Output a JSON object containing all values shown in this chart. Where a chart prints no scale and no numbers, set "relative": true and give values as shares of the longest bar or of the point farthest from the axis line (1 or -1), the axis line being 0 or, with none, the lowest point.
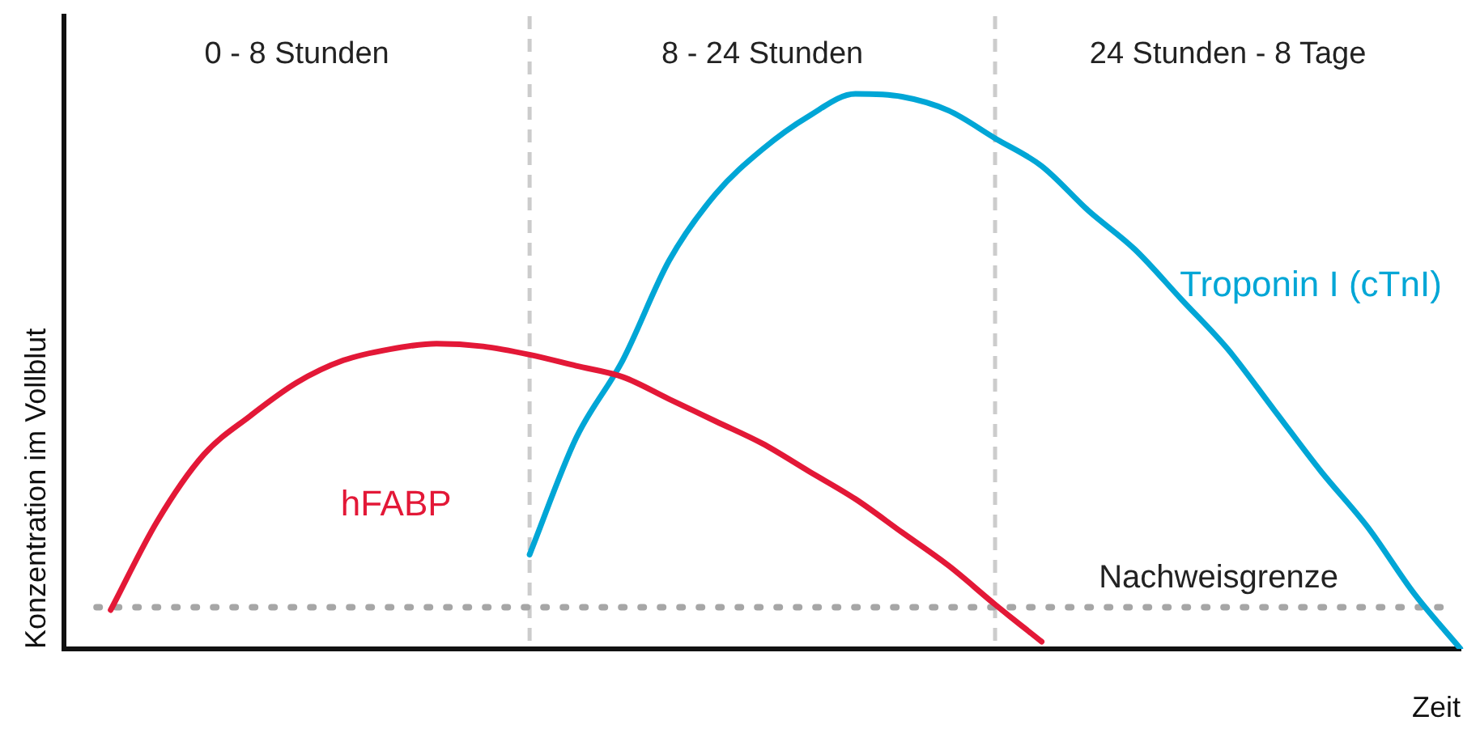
{
  "chart_data": {
    "type": "line",
    "relative": true,
    "xlabel": "Zeit",
    "ylabel": "Konzentration im Vollblut",
    "categories": [
      null,
      null,
      null,
      null,
      null,
      null,
      null,
      null,
      null,
      null,
      null,
      null,
      null,
      null,
      null,
      null,
      null,
      null,
      null,
      null,
      null,
      null,
      null,
      null,
      null,
      null,
      null,
      null,
      null,
      null,
      null
    ],
    "series": [
      {
        "name": "hFABP",
        "color": "#e31837",
        "values": [
          null,
          0.07,
          0.23,
          0.35,
          0.42,
          0.48,
          0.52,
          0.54,
          0.55,
          0.545,
          0.53,
          0.51,
          0.49,
          0.45,
          0.41,
          0.37,
          0.32,
          0.27,
          0.21,
          0.15,
          0.08,
          0.013,
          null,
          null,
          null,
          null,
          null,
          null,
          null,
          null,
          null
        ]
      },
      {
        "name": "Troponin I (cTnI)",
        "color": "#00a6d6",
        "values": [
          null,
          null,
          null,
          null,
          null,
          null,
          null,
          null,
          null,
          null,
          0.17,
          0.38,
          0.52,
          0.7,
          0.82,
          0.9,
          0.96,
          1.0,
          0.995,
          0.97,
          0.92,
          0.87,
          0.79,
          0.72,
          0.63,
          0.54,
          0.43,
          0.32,
          0.22,
          0.1,
          0
        ]
      }
    ],
    "ref_lines": [
      {
        "axis": "y",
        "value": 0.075,
        "label": "Nachweisgrenze",
        "color": "#a6a6a6",
        "line_style": "dotted"
      }
    ],
    "annotations": [
      "0 - 8 Stunden",
      "8 - 24 Stunden",
      "24 Stunden - 8 Tage"
    ],
    "legend": false,
    "grid": false,
    "marker": "none",
    "line_style": "solid"
  }
}
